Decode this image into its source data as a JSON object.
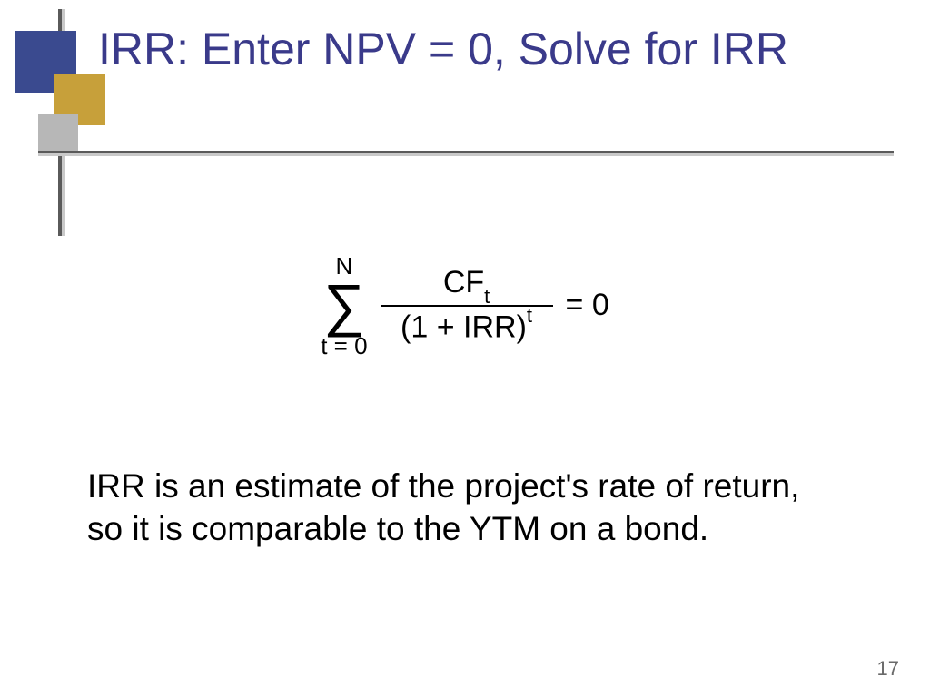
{
  "title": "IRR:  Enter NPV = 0, Solve for IRR",
  "formula": {
    "sigma_upper": "N",
    "sigma_symbol": "∑",
    "sigma_lower": "t = 0",
    "numerator_base": "CF",
    "numerator_sub": "t",
    "denominator_pre": "(1 + IRR)",
    "denominator_sup": "t",
    "equals": "= 0"
  },
  "body": "IRR is an estimate of the project's rate of return, so it is comparable to the YTM on a bond.",
  "page_number": "17",
  "colors": {
    "title": "#3a3a8a",
    "sq_blue": "#3a4a8f",
    "sq_gold": "#c7a03a",
    "sq_gray": "#b7b7b7",
    "line_dark": "#5a5a5a",
    "line_light": "#c9c9c9"
  }
}
